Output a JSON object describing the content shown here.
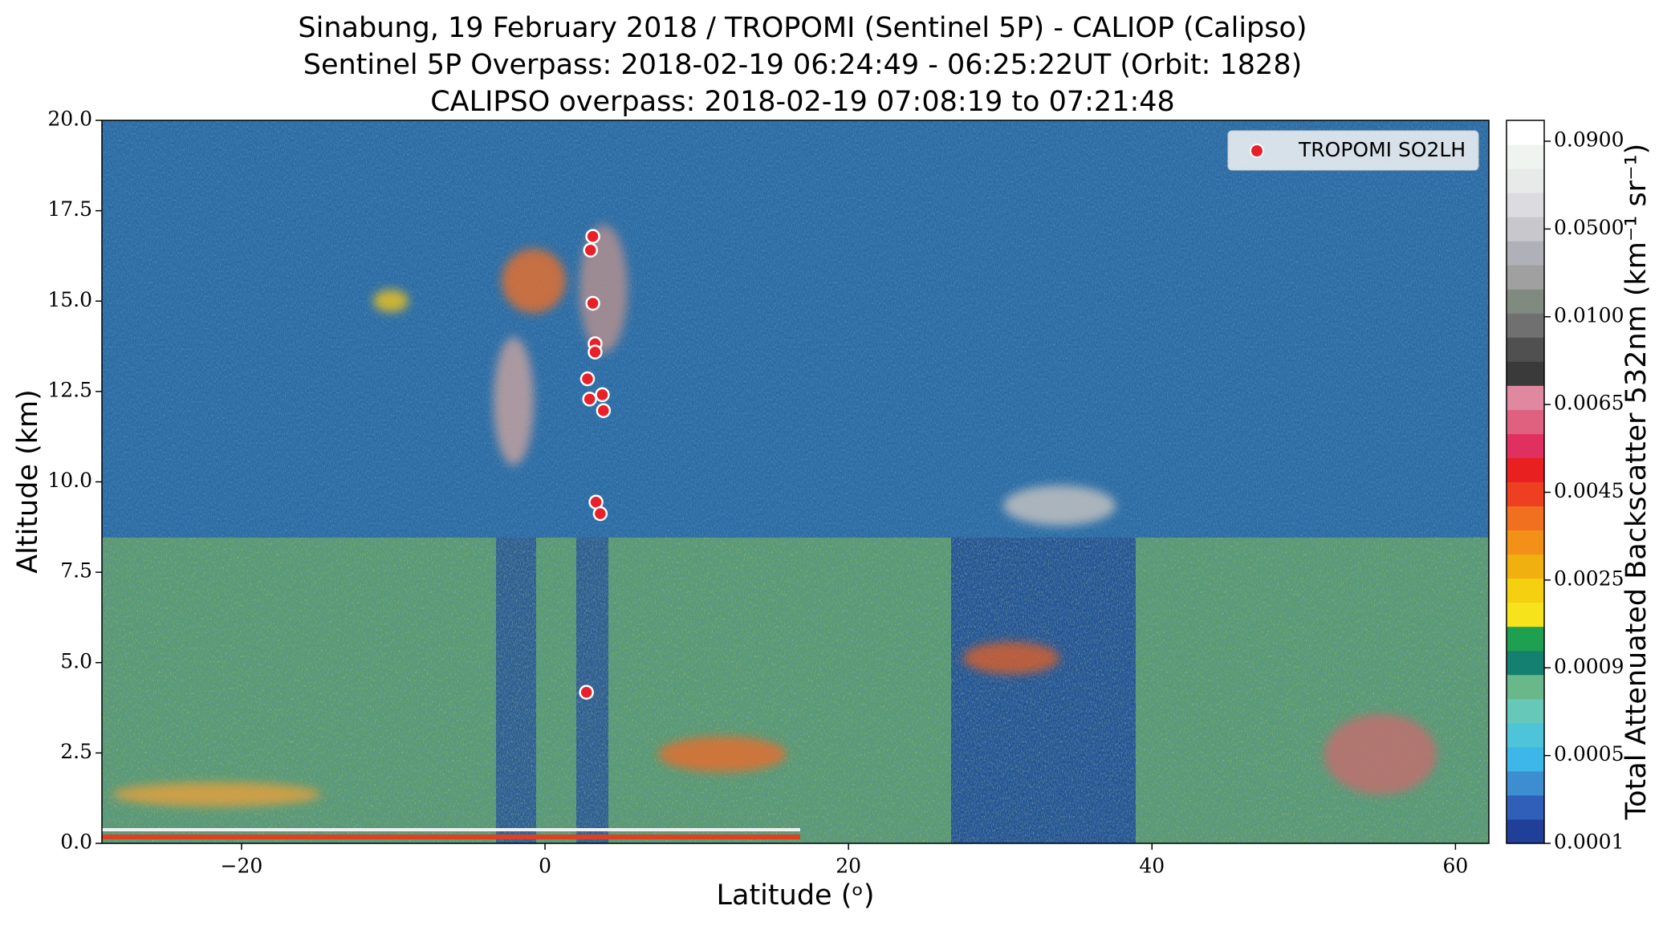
{
  "chart_data": {
    "type": "scatter",
    "title": "Sinabung, 19 February 2018 / TROPOMI (Sentinel 5P) - CALIOP (Calipso)",
    "subtitle": "Sentinel 5P Overpass: 2018-02-19 06:24:49 - 06:25:22UT (Orbit: 1828)",
    "subtitle2": "CALIPSO overpass: 2018-02-19 07:08:19 to 07:21:48",
    "x_label": "Latitude (ᵒ)",
    "y_label": "Altitude (km)",
    "xlim": [
      -29.2,
      62.2
    ],
    "xticks": [
      -20,
      0,
      20,
      40,
      60
    ],
    "ylim": [
      0,
      20
    ],
    "yticks": [
      {
        "value": 0,
        "label": "0.0"
      },
      2.5,
      {
        "value": 5,
        "label": "5.0"
      },
      7.5,
      {
        "value": 10,
        "label": "10.0"
      },
      12.5,
      {
        "value": 15,
        "label": "15.0"
      },
      17.5,
      {
        "value": 20,
        "label": "20.0"
      }
    ],
    "legend": "upper right",
    "series": [
      {
        "name": "TROPOMI SO2LH",
        "color": "#e8202a",
        "x": [
          3.15,
          3.0,
          3.15,
          3.3,
          3.3,
          2.8,
          2.94,
          3.78,
          3.85,
          3.36,
          3.64,
          2.73
        ],
        "values": [
          16.79,
          16.41,
          14.94,
          13.82,
          13.59,
          12.85,
          12.29,
          12.41,
          11.97,
          9.44,
          9.12,
          4.18
        ]
      }
    ],
    "colorbar": {
      "label": "Total Attenuated Backscatter 532nm (km⁻¹ sr⁻¹)",
      "ticks": [
        0.0001,
        0.0005,
        0.0009,
        0.0025,
        0.0045,
        0.0065,
        {
          "value": 0.01,
          "label": "0.0100"
        },
        {
          "value": 0.05,
          "label": "0.0500"
        },
        {
          "value": 0.09,
          "label": "0.0900"
        }
      ],
      "colors": [
        "#1f3f99",
        "#2f5fb8",
        "#3c8ed0",
        "#3cb7e8",
        "#4dc4d8",
        "#66c8b8",
        "#68b88a",
        "#148070",
        "#1ea050",
        "#f7e31c",
        "#f5d010",
        "#f0b010",
        "#f29018",
        "#f07020",
        "#ee4020",
        "#e82020",
        "#e03060",
        "#e06080",
        "#e088a0",
        "#3a3a3a",
        "#505050",
        "#707070",
        "#808a80",
        "#a0a0a0",
        "#b0b0b8",
        "#c8c8cc",
        "#dcdce0",
        "#e8eaea",
        "#f0f4f0",
        "#ffffff"
      ]
    }
  }
}
